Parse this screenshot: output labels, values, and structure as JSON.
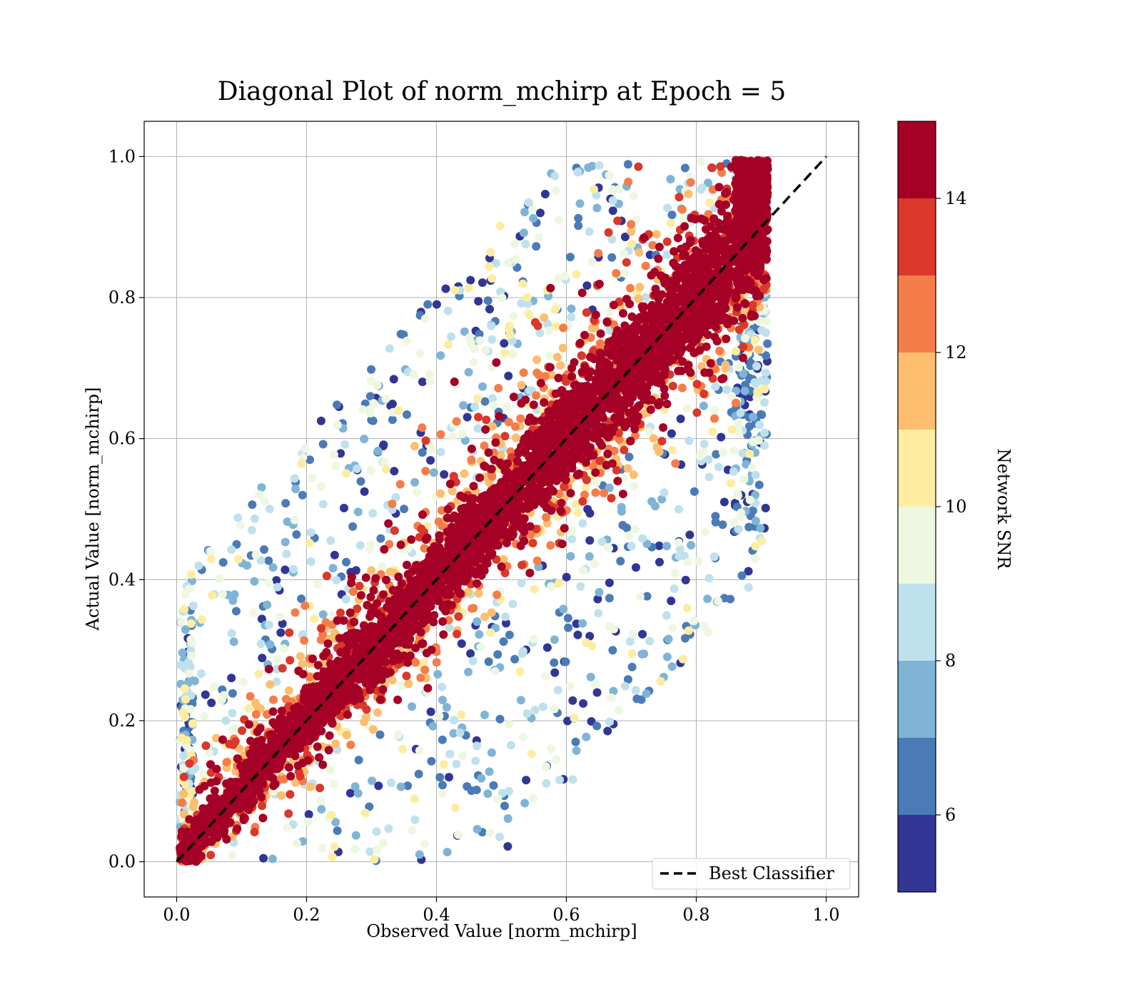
{
  "chart_data": {
    "type": "scatter",
    "title": "Diagonal Plot of norm_mchirp at Epoch = 5",
    "xlabel": "Observed Value [norm_mchirp]",
    "ylabel": "Actual Value [norm_mchirp]",
    "xlim": [
      -0.05,
      1.05
    ],
    "ylim": [
      -0.05,
      1.05
    ],
    "x_ticks": [
      0.0,
      0.2,
      0.4,
      0.6,
      0.8,
      1.0
    ],
    "y_ticks": [
      0.0,
      0.2,
      0.4,
      0.6,
      0.8,
      1.0
    ],
    "x_tick_labels": [
      "0.0",
      "0.2",
      "0.4",
      "0.6",
      "0.8",
      "1.0"
    ],
    "y_tick_labels": [
      "0.0",
      "0.2",
      "0.4",
      "0.6",
      "0.8",
      "1.0"
    ],
    "grid": true,
    "legend_placement": "lower-right",
    "reference_line": {
      "name": "Best Classifier",
      "x": [
        0.0,
        1.0
      ],
      "y": [
        0.0,
        1.0
      ],
      "style": "dashed",
      "color": "#000000"
    },
    "colorbar": {
      "label": "Network SNR",
      "range": [
        5,
        15
      ],
      "tick_values": [
        6,
        8,
        10,
        12,
        14
      ],
      "tick_labels": [
        "6",
        "8",
        "10",
        "12",
        "14"
      ],
      "levels": [
        {
          "from": 5,
          "to": 6,
          "color": "#313695"
        },
        {
          "from": 6,
          "to": 7,
          "color": "#4a7bb7"
        },
        {
          "from": 7,
          "to": 8,
          "color": "#7fb4d6"
        },
        {
          "from": 8,
          "to": 9,
          "color": "#bfe1ed"
        },
        {
          "from": 9,
          "to": 10,
          "color": "#eef7e0"
        },
        {
          "from": 10,
          "to": 11,
          "color": "#feeda1"
        },
        {
          "from": 11,
          "to": 12,
          "color": "#fdbe6f"
        },
        {
          "from": 12,
          "to": 13,
          "color": "#f57d4a"
        },
        {
          "from": 13,
          "to": 14,
          "color": "#d9382a"
        },
        {
          "from": 14,
          "to": 15,
          "color": "#a50026"
        }
      ]
    },
    "point_cloud": {
      "description_of_distribution": "dense band along the diagonal, high SNR near diagonal, low SNR scattered away",
      "x_range": [
        0.0,
        0.92
      ],
      "y_range": [
        0.0,
        1.0
      ]
    }
  }
}
